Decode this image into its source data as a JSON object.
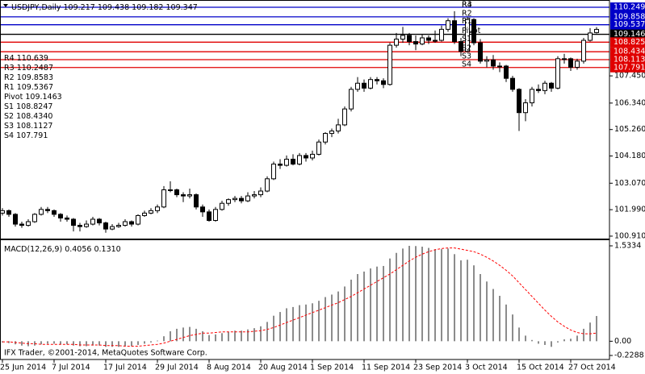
{
  "chart_data": [
    {
      "type": "candlestick",
      "title": "USDJPY,Daily",
      "watermark": "IFX Trader, ©2001-2014, MetaQuotes Software Corp.",
      "up_color": "#ffffff",
      "down_color": "#000000",
      "level_label_color": "#dd3333",
      "categories": [
        "25 Jun 2014",
        null,
        null,
        null,
        null,
        null,
        null,
        null,
        "7 Jul 2014",
        null,
        null,
        null,
        null,
        null,
        null,
        null,
        "17 Jul 2014",
        null,
        null,
        null,
        null,
        null,
        null,
        null,
        "29 Jul 2014",
        null,
        null,
        null,
        null,
        null,
        null,
        null,
        "8 Aug 2014",
        null,
        null,
        null,
        null,
        null,
        null,
        null,
        "20 Aug 2014",
        null,
        null,
        null,
        null,
        null,
        null,
        null,
        "1 Sep 2014",
        null,
        null,
        null,
        null,
        null,
        null,
        null,
        "11 Sep 2014",
        null,
        null,
        null,
        null,
        null,
        null,
        null,
        "23 Sep 2014",
        null,
        null,
        null,
        null,
        null,
        null,
        null,
        "3 Oct 2014",
        null,
        null,
        null,
        null,
        null,
        null,
        null,
        "15 Oct 2014",
        null,
        null,
        null,
        null,
        null,
        null,
        null,
        "27 Oct 2014",
        null,
        null,
        null,
        null
      ],
      "ohlc": [
        [
          101.85,
          102.05,
          101.75,
          101.95
        ],
        [
          101.95,
          102.0,
          101.7,
          101.8
        ],
        [
          101.8,
          101.85,
          101.3,
          101.4
        ],
        [
          101.4,
          101.5,
          101.25,
          101.35
        ],
        [
          101.35,
          101.6,
          101.3,
          101.5
        ],
        [
          101.5,
          101.85,
          101.45,
          101.8
        ],
        [
          101.8,
          102.1,
          101.75,
          102.0
        ],
        [
          102.0,
          102.1,
          101.85,
          101.95
        ],
        [
          101.95,
          102.0,
          101.7,
          101.8
        ],
        [
          101.8,
          101.85,
          101.5,
          101.65
        ],
        [
          101.65,
          101.75,
          101.5,
          101.6
        ],
        [
          101.6,
          101.65,
          101.1,
          101.35
        ],
        [
          101.35,
          101.45,
          101.1,
          101.3
        ],
        [
          101.3,
          101.55,
          101.25,
          101.4
        ],
        [
          101.4,
          101.7,
          101.35,
          101.6
        ],
        [
          101.6,
          101.65,
          101.35,
          101.45
        ],
        [
          101.45,
          101.5,
          101.05,
          101.2
        ],
        [
          101.2,
          101.4,
          101.15,
          101.3
        ],
        [
          101.3,
          101.45,
          101.25,
          101.35
        ],
        [
          101.35,
          101.6,
          101.3,
          101.5
        ],
        [
          101.5,
          101.55,
          101.3,
          101.4
        ],
        [
          101.4,
          101.8,
          101.35,
          101.75
        ],
        [
          101.75,
          101.95,
          101.7,
          101.85
        ],
        [
          101.85,
          102.05,
          101.8,
          101.95
        ],
        [
          101.95,
          102.2,
          101.85,
          102.1
        ],
        [
          102.1,
          102.95,
          102.05,
          102.8
        ],
        [
          102.8,
          103.15,
          102.7,
          102.8
        ],
        [
          102.8,
          102.85,
          102.5,
          102.6
        ],
        [
          102.6,
          102.7,
          102.3,
          102.55
        ],
        [
          102.55,
          102.85,
          102.45,
          102.6
        ],
        [
          102.6,
          102.65,
          102.0,
          102.1
        ],
        [
          102.1,
          102.2,
          101.7,
          101.9
        ],
        [
          101.9,
          102.0,
          101.5,
          101.55
        ],
        [
          101.55,
          102.1,
          101.5,
          102.0
        ],
        [
          102.0,
          102.35,
          101.95,
          102.25
        ],
        [
          102.25,
          102.45,
          102.15,
          102.4
        ],
        [
          102.4,
          102.55,
          102.3,
          102.45
        ],
        [
          102.45,
          102.55,
          102.25,
          102.35
        ],
        [
          102.35,
          102.7,
          102.3,
          102.55
        ],
        [
          102.55,
          102.75,
          102.45,
          102.6
        ],
        [
          102.6,
          102.9,
          102.5,
          102.75
        ],
        [
          102.75,
          103.35,
          102.7,
          103.25
        ],
        [
          103.25,
          103.95,
          103.2,
          103.85
        ],
        [
          103.85,
          104.05,
          103.65,
          103.8
        ],
        [
          103.8,
          104.2,
          103.75,
          104.05
        ],
        [
          104.05,
          104.25,
          103.8,
          103.85
        ],
        [
          103.85,
          104.3,
          103.8,
          104.2
        ],
        [
          104.2,
          104.3,
          103.95,
          104.1
        ],
        [
          104.1,
          104.4,
          104.0,
          104.25
        ],
        [
          104.25,
          104.85,
          104.2,
          104.75
        ],
        [
          104.75,
          105.15,
          104.65,
          105.1
        ],
        [
          105.1,
          105.3,
          104.95,
          105.2
        ],
        [
          105.2,
          105.7,
          105.1,
          105.45
        ],
        [
          105.45,
          106.2,
          105.4,
          106.1
        ],
        [
          106.1,
          107.0,
          106.0,
          106.9
        ],
        [
          106.9,
          107.4,
          106.8,
          107.15
        ],
        [
          107.15,
          107.3,
          106.8,
          106.95
        ],
        [
          106.95,
          107.4,
          106.9,
          107.3
        ],
        [
          107.3,
          107.4,
          107.1,
          107.25
        ],
        [
          107.25,
          107.35,
          106.95,
          107.1
        ],
        [
          107.1,
          108.8,
          107.05,
          108.7
        ],
        [
          108.7,
          109.2,
          108.6,
          108.95
        ],
        [
          108.95,
          109.45,
          108.8,
          109.1
        ],
        [
          109.1,
          109.2,
          108.7,
          108.85
        ],
        [
          108.85,
          109.1,
          108.5,
          108.75
        ],
        [
          108.75,
          109.15,
          108.7,
          109.0
        ],
        [
          109.0,
          109.1,
          108.75,
          108.9
        ],
        [
          108.9,
          109.3,
          108.8,
          108.9
        ],
        [
          108.9,
          109.5,
          108.85,
          109.35
        ],
        [
          109.35,
          109.8,
          109.25,
          109.7
        ],
        [
          109.7,
          110.09,
          108.75,
          108.85
        ],
        [
          108.85,
          109.0,
          108.25,
          108.45
        ],
        [
          108.45,
          109.85,
          108.4,
          109.75
        ],
        [
          109.75,
          109.8,
          108.7,
          108.8
        ],
        [
          108.8,
          108.95,
          107.95,
          108.05
        ],
        [
          108.05,
          108.25,
          107.8,
          108.1
        ],
        [
          108.1,
          108.3,
          107.7,
          107.85
        ],
        [
          107.85,
          108.0,
          107.6,
          107.85
        ],
        [
          107.85,
          107.9,
          107.2,
          107.35
        ],
        [
          107.35,
          107.45,
          106.8,
          106.9
        ],
        [
          106.9,
          106.95,
          105.2,
          105.95
        ],
        [
          105.95,
          106.5,
          105.6,
          106.35
        ],
        [
          106.35,
          107.0,
          106.2,
          106.9
        ],
        [
          106.9,
          107.1,
          106.75,
          106.85
        ],
        [
          106.85,
          107.25,
          106.7,
          107.15
        ],
        [
          107.15,
          107.2,
          106.8,
          106.95
        ],
        [
          106.95,
          108.25,
          106.9,
          108.15
        ],
        [
          108.15,
          108.35,
          107.95,
          108.15
        ],
        [
          108.15,
          108.2,
          107.65,
          107.8
        ],
        [
          107.8,
          108.15,
          107.7,
          108.05
        ],
        [
          108.05,
          109.0,
          107.95,
          108.9
        ],
        [
          108.9,
          109.4,
          108.85,
          109.2
        ],
        [
          109.217,
          109.438,
          109.182,
          109.347
        ]
      ],
      "ylim": [
        100.81,
        110.48
      ],
      "yticks": [
        {
          "value": 107.45,
          "label": "107.450"
        },
        {
          "value": 106.34,
          "label": "106.340"
        },
        {
          "value": 105.26,
          "label": "105.260"
        },
        {
          "value": 104.18,
          "label": "104.180"
        },
        {
          "value": 103.07,
          "label": "103.070"
        },
        {
          "value": 101.99,
          "label": "101.990"
        },
        {
          "value": 100.91,
          "label": "100.910"
        }
      ],
      "levels": [
        {
          "name": "R4",
          "value": 110.639,
          "color": "#0000c8"
        },
        {
          "name": "R3",
          "value": 110.2487,
          "axis_label": "110.249",
          "color": "#0000c8"
        },
        {
          "name": "R2",
          "value": 109.8583,
          "axis_label": "109.858",
          "color": "#0000c8"
        },
        {
          "name": "R1",
          "value": 109.5367,
          "axis_label": "109.537",
          "color": "#0000c8"
        },
        {
          "name": "Pivot",
          "value": 109.1463,
          "axis_label": "109.146",
          "color": "#000000"
        },
        {
          "name": "S1",
          "value": 108.8247,
          "axis_label": "108.825",
          "color": "#e00000"
        },
        {
          "name": "S2",
          "value": 108.434,
          "list_label": "108.4340",
          "axis_label": "108.434",
          "color": "#e00000"
        },
        {
          "name": "S3",
          "value": 108.1127,
          "axis_label": "108.113",
          "color": "#e00000"
        },
        {
          "name": "S4",
          "value": 107.791,
          "axis_label": "107.791",
          "color": "#e00000"
        }
      ]
    },
    {
      "type": "macd",
      "title": "MACD(12,26,9)",
      "color": "#404040",
      "signal_color": "#ff0000",
      "signal_last_label": "0.1310",
      "values": [
        -0.02,
        -0.03,
        -0.05,
        -0.07,
        -0.08,
        -0.07,
        -0.05,
        -0.04,
        -0.04,
        -0.05,
        -0.05,
        -0.07,
        -0.08,
        -0.08,
        -0.07,
        -0.07,
        -0.09,
        -0.09,
        -0.09,
        -0.08,
        -0.08,
        -0.06,
        -0.04,
        -0.02,
        0.01,
        0.08,
        0.16,
        0.2,
        0.22,
        0.23,
        0.2,
        0.16,
        0.1,
        0.11,
        0.13,
        0.15,
        0.17,
        0.17,
        0.19,
        0.21,
        0.24,
        0.31,
        0.41,
        0.47,
        0.53,
        0.55,
        0.58,
        0.59,
        0.61,
        0.65,
        0.71,
        0.75,
        0.8,
        0.88,
        0.99,
        1.08,
        1.12,
        1.17,
        1.2,
        1.21,
        1.33,
        1.42,
        1.49,
        1.5334,
        1.53,
        1.52,
        1.5,
        1.48,
        1.48,
        1.49,
        1.4,
        1.3,
        1.31,
        1.22,
        1.08,
        0.96,
        0.84,
        0.73,
        0.59,
        0.43,
        0.22,
        0.09,
        0.02,
        -0.04,
        -0.06,
        -0.09,
        -0.02,
        0.03,
        0.04,
        0.09,
        0.2,
        0.3,
        0.4056
      ],
      "signal": [
        -0.01,
        -0.01,
        -0.02,
        -0.03,
        -0.04,
        -0.04,
        -0.05,
        -0.05,
        -0.05,
        -0.05,
        -0.05,
        -0.05,
        -0.06,
        -0.06,
        -0.06,
        -0.06,
        -0.07,
        -0.07,
        -0.07,
        -0.08,
        -0.08,
        -0.08,
        -0.07,
        -0.06,
        -0.05,
        -0.03,
        0.0,
        0.03,
        0.06,
        0.09,
        0.11,
        0.13,
        0.13,
        0.14,
        0.15,
        0.15,
        0.15,
        0.15,
        0.15,
        0.16,
        0.17,
        0.19,
        0.22,
        0.26,
        0.3,
        0.34,
        0.38,
        0.42,
        0.46,
        0.5,
        0.54,
        0.58,
        0.62,
        0.67,
        0.72,
        0.78,
        0.84,
        0.9,
        0.96,
        1.02,
        1.08,
        1.15,
        1.22,
        1.29,
        1.35,
        1.4,
        1.44,
        1.47,
        1.49,
        1.5,
        1.5,
        1.48,
        1.46,
        1.44,
        1.4,
        1.35,
        1.29,
        1.22,
        1.14,
        1.05,
        0.94,
        0.83,
        0.72,
        0.61,
        0.5,
        0.4,
        0.31,
        0.24,
        0.18,
        0.14,
        0.12,
        0.12,
        0.131
      ],
      "ylim": [
        -0.2288,
        1.5334
      ],
      "yticks": [
        1.5334,
        {
          "value": 0,
          "label": "0.00"
        },
        -0.2288
      ]
    }
  ]
}
